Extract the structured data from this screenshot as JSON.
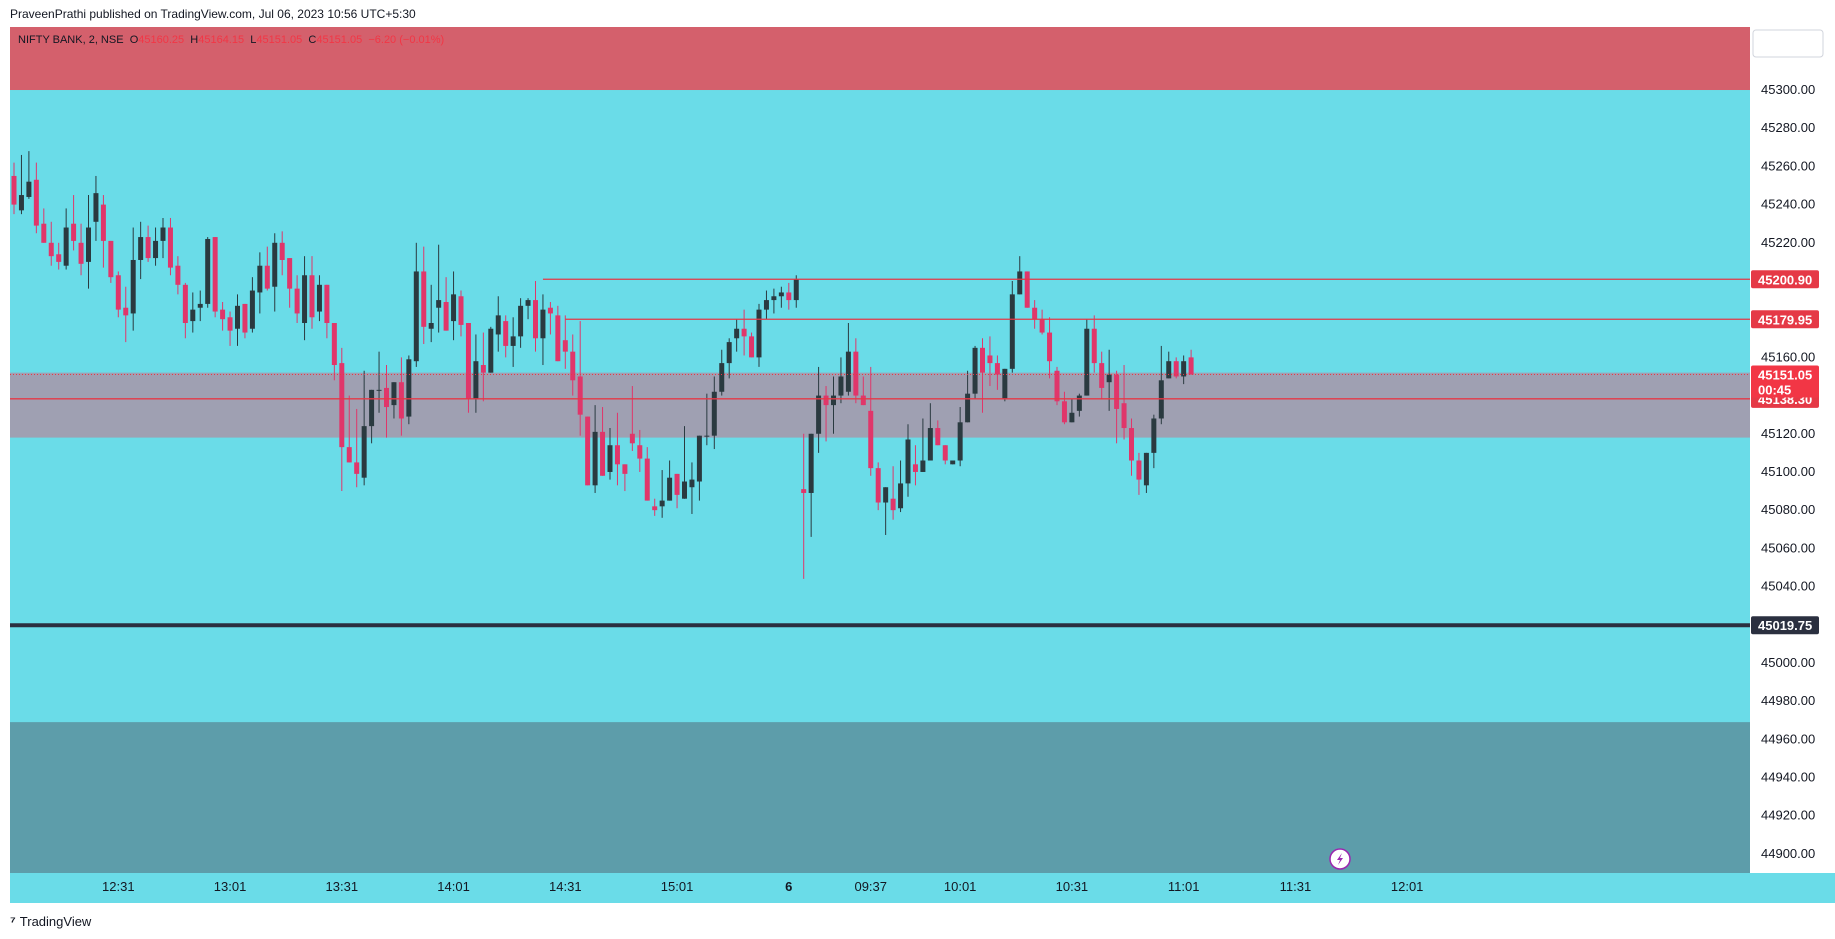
{
  "header": {
    "published_by": "PraveenPrathi published on TradingView.com, Jul 06, 2023 10:56 UTC+5:30"
  },
  "footer": {
    "brand": "TradingView"
  },
  "legend": {
    "symbol": "NIFTY BANK, 2, NSE",
    "o_label": "O",
    "o_value": "45160.25",
    "h_label": "H",
    "h_value": "45164.15",
    "l_label": "L",
    "l_value": "45151.05",
    "c_label": "C",
    "c_value": "45151.05",
    "change": "−6.20 (−0.01%)"
  },
  "colors": {
    "background": "#6adce8",
    "resistance_zone": "#d4606c",
    "demand_zone": "#5d9daa",
    "mid_zone": "#9fa0b2",
    "bull": "#2a3a40",
    "bear": "#e0366a",
    "line_red": "#e53946",
    "line_dark": "#2b3040"
  },
  "chart_data": {
    "type": "candlestick",
    "title": "NIFTY BANK, 2, NSE",
    "ylim": [
      44890,
      45333
    ],
    "y_ticks": [
      45300,
      45280,
      45260,
      45240,
      45220,
      45200,
      45180,
      45160,
      45140,
      45120,
      45100,
      45080,
      45060,
      45040,
      45020,
      45000,
      44980,
      44960,
      44940,
      44920,
      44900
    ],
    "y_tick_labels": [
      "45300.00",
      "45280.00",
      "45260.00",
      "45240.00",
      "45220.00",
      "45200.00",
      "45180.00",
      "45160.00",
      "45140.00",
      "45120.00",
      "45100.00",
      "45080.00",
      "45060.00",
      "45040.00",
      "45020.00",
      "45000.00",
      "44980.00",
      "44960.00",
      "44940.00",
      "44920.00",
      "44900.00"
    ],
    "x_labels": [
      {
        "label": "12:31",
        "bar": 14
      },
      {
        "label": "13:01",
        "bar": 29
      },
      {
        "label": "13:31",
        "bar": 44
      },
      {
        "label": "14:01",
        "bar": 59
      },
      {
        "label": "14:31",
        "bar": 74
      },
      {
        "label": "15:01",
        "bar": 89
      },
      {
        "label": "6",
        "bar": 104
      },
      {
        "label": "09:37",
        "bar": 115
      },
      {
        "label": "10:01",
        "bar": 127
      },
      {
        "label": "10:31",
        "bar": 142
      },
      {
        "label": "11:01",
        "bar": 157
      },
      {
        "label": "11:31",
        "bar": 172
      },
      {
        "label": "12:01",
        "bar": 187
      }
    ],
    "zones": [
      {
        "name": "resistance",
        "from": 45300,
        "to": 45333
      },
      {
        "name": "mid",
        "from": 45118,
        "to": 45152
      },
      {
        "name": "demand",
        "from": 44890,
        "to": 44969
      }
    ],
    "levels": [
      {
        "name": "level-45200",
        "value": 45200.9,
        "label": "45200.90",
        "from_bar": 71
      },
      {
        "name": "level-45179",
        "value": 45179.95,
        "label": "45179.95",
        "from_bar": 74
      },
      {
        "name": "level-45138",
        "value": 45138.3,
        "label": "45138.30",
        "from_bar": 0
      },
      {
        "name": "level-45019",
        "value": 45019.75,
        "label": "45019.75",
        "from_bar": 0
      }
    ],
    "last_price": {
      "value": 45151.05,
      "label": "45151.05",
      "countdown": "00:45"
    },
    "candles": [
      [
        45255,
        45262,
        45240,
        45235
      ],
      [
        45237,
        45266,
        45245,
        45235
      ],
      [
        45244,
        45268,
        45252,
        45243
      ],
      [
        45253,
        45262,
        45229,
        45225
      ],
      [
        45230,
        45238,
        45220,
        45221
      ],
      [
        45220,
        45231,
        45213,
        45208
      ],
      [
        45214,
        45220,
        45210,
        45206
      ],
      [
        45208,
        45238,
        45228,
        45206
      ],
      [
        45230,
        45245,
        45221,
        45216
      ],
      [
        45220,
        45230,
        45209,
        45203
      ],
      [
        45210,
        45245,
        45228,
        45196
      ],
      [
        45231,
        45255,
        45246,
        45221
      ],
      [
        45240,
        45245,
        45221,
        45207
      ],
      [
        45221,
        45219,
        45202,
        45199
      ],
      [
        45203,
        45205,
        45185,
        45181
      ],
      [
        45186,
        45197,
        45182,
        45168
      ],
      [
        45183,
        45228,
        45211,
        45174
      ],
      [
        45211,
        45231,
        45223,
        45201
      ],
      [
        45223,
        45229,
        45212,
        45210
      ],
      [
        45212,
        45228,
        45221,
        45208
      ],
      [
        45221,
        45233,
        45228,
        45212
      ],
      [
        45228,
        45233,
        45207,
        45203
      ],
      [
        45208,
        45213,
        45198,
        45193
      ],
      [
        45198,
        45199,
        45178,
        45170
      ],
      [
        45179,
        45194,
        45185,
        45173
      ],
      [
        45186,
        45195,
        45188,
        45179
      ],
      [
        45188,
        45223,
        45222,
        45186
      ],
      [
        45223,
        45223,
        45184,
        45181
      ],
      [
        45185,
        45189,
        45180,
        45174
      ],
      [
        45181,
        45184,
        45174,
        45166
      ],
      [
        45175,
        45193,
        45187,
        45166
      ],
      [
        45188,
        45188,
        45173,
        45170
      ],
      [
        45175,
        45202,
        45195,
        45173
      ],
      [
        45194,
        45215,
        45208,
        45183
      ],
      [
        45208,
        45218,
        45196,
        45195
      ],
      [
        45197,
        45225,
        45220,
        45184
      ],
      [
        45220,
        45226,
        45211,
        45203
      ],
      [
        45212,
        45201,
        45196,
        45186
      ],
      [
        45196,
        45203,
        45183,
        45178
      ],
      [
        45178,
        45213,
        45203,
        45169
      ],
      [
        45203,
        45213,
        45181,
        45175
      ],
      [
        45184,
        45203,
        45198,
        45179
      ],
      [
        45198,
        45198,
        45178,
        45170
      ],
      [
        45178,
        45177,
        45156,
        45148
      ],
      [
        45157,
        45165,
        45113,
        45090
      ],
      [
        45113,
        45140,
        45105,
        45108
      ],
      [
        45105,
        45133,
        45099,
        45092
      ],
      [
        45097,
        45153,
        45124,
        45093
      ],
      [
        45124,
        45143,
        45143,
        45115
      ],
      [
        45143,
        45163,
        45143,
        45131
      ],
      [
        45144,
        45156,
        45134,
        45118
      ],
      [
        45135,
        45147,
        45147,
        45128
      ],
      [
        45147,
        45160,
        45128,
        45119
      ],
      [
        45129,
        45161,
        45159,
        45125
      ],
      [
        45158,
        45220,
        45205,
        45155
      ],
      [
        45205,
        45218,
        45176,
        45167
      ],
      [
        45175,
        45198,
        45178,
        45168
      ],
      [
        45186,
        45219,
        45190,
        45173
      ],
      [
        45189,
        45202,
        45174,
        45174
      ],
      [
        45179,
        45205,
        45193,
        45169
      ],
      [
        45192,
        45195,
        45177,
        45171
      ],
      [
        45178,
        45162,
        45138,
        45131
      ],
      [
        45138,
        45172,
        45158,
        45131
      ],
      [
        45156,
        45173,
        45152,
        45137
      ],
      [
        45152,
        45176,
        45175,
        45156
      ],
      [
        45172,
        45192,
        45182,
        45163
      ],
      [
        45179,
        45182,
        45166,
        45160
      ],
      [
        45166,
        45181,
        45171,
        45155
      ],
      [
        45171,
        45191,
        45187,
        45165
      ],
      [
        45187,
        45191,
        45190,
        45180
      ],
      [
        45190,
        45200,
        45170,
        45163
      ],
      [
        45170,
        45193,
        45185,
        45156
      ],
      [
        45186,
        45189,
        45183,
        45172
      ],
      [
        45182,
        45187,
        45158,
        45159
      ],
      [
        45169,
        45182,
        45163,
        45154
      ],
      [
        45163,
        45172,
        45148,
        45140
      ],
      [
        45150,
        45179,
        45130,
        45119
      ],
      [
        45129,
        45128,
        45093,
        45093
      ],
      [
        45093,
        45135,
        45121,
        45089
      ],
      [
        45121,
        45134,
        45098,
        45100
      ],
      [
        45100,
        45123,
        45114,
        45096
      ],
      [
        45114,
        45131,
        45104,
        45093
      ],
      [
        45104,
        45104,
        45099,
        45090
      ],
      [
        45120,
        45145,
        45115,
        45111
      ],
      [
        45114,
        45122,
        45107,
        45100
      ],
      [
        45107,
        45113,
        45085,
        45086
      ],
      [
        45082,
        45086,
        45080,
        45077
      ],
      [
        45082,
        45101,
        45085,
        45076
      ],
      [
        45085,
        45106,
        45097,
        45085
      ],
      [
        45099,
        45091,
        45088,
        45081
      ],
      [
        45086,
        45124,
        45095,
        45092
      ],
      [
        45092,
        45105,
        45096,
        45078
      ],
      [
        45095,
        45119,
        45119,
        45085
      ],
      [
        45119,
        45141,
        45119,
        45114
      ],
      [
        45119,
        45150,
        45142,
        45112
      ],
      [
        45142,
        45164,
        45157,
        45140
      ],
      [
        45157,
        45170,
        45168,
        45149
      ],
      [
        45170,
        45180,
        45175,
        45163
      ],
      [
        45175,
        45185,
        45171,
        45161
      ],
      [
        45171,
        45173,
        45160,
        45165
      ],
      [
        45160,
        45188,
        45185,
        45155
      ],
      [
        45185,
        45195,
        45190,
        45180
      ],
      [
        45190,
        45196,
        45192,
        45183
      ],
      [
        45192,
        45197,
        45194,
        45186
      ],
      [
        45194,
        45199,
        45190,
        45185
      ],
      [
        45190,
        45203,
        45201,
        45186
      ],
      [
        45091,
        45120,
        45089,
        45044
      ],
      [
        45089,
        45120,
        45120,
        45066
      ],
      [
        45120,
        45155,
        45140,
        45110
      ],
      [
        45140,
        45145,
        45135,
        45116
      ],
      [
        45135,
        45150,
        45140,
        45120
      ],
      [
        45140,
        45160,
        45150,
        45136
      ],
      [
        45142,
        45178,
        45163,
        45140
      ],
      [
        45163,
        45170,
        45140,
        45136
      ],
      [
        45140,
        45150,
        45135,
        45138
      ],
      [
        45132,
        45155,
        45102,
        45098
      ],
      [
        45102,
        45105,
        45084,
        45080
      ],
      [
        45084,
        45092,
        45092,
        45067
      ],
      [
        45086,
        45103,
        45080,
        45075
      ],
      [
        45081,
        45106,
        45094,
        45079
      ],
      [
        45094,
        45125,
        45117,
        45087
      ],
      [
        45104,
        45114,
        45100,
        45093
      ],
      [
        45100,
        45128,
        45106,
        45105
      ],
      [
        45106,
        45136,
        45123,
        45112
      ],
      [
        45123,
        45127,
        45114,
        45114
      ],
      [
        45114,
        45113,
        45106,
        45104
      ],
      [
        45104,
        45106,
        45106,
        45104
      ],
      [
        45106,
        45134,
        45126,
        45103
      ],
      [
        45126,
        45153,
        45141,
        45126
      ],
      [
        45141,
        45166,
        45165,
        45138
      ],
      [
        45165,
        45170,
        45152,
        45131
      ],
      [
        45161,
        45171,
        45157,
        45145
      ],
      [
        45157,
        45161,
        45151,
        45143
      ],
      [
        45138,
        45145,
        45154,
        45137
      ],
      [
        45154,
        45200,
        45193,
        45152
      ],
      [
        45193,
        45213,
        45205,
        45193
      ],
      [
        45205,
        45203,
        45186,
        45187
      ],
      [
        45186,
        45190,
        45180,
        45175
      ],
      [
        45180,
        45185,
        45173,
        45172
      ],
      [
        45173,
        45181,
        45158,
        45149
      ],
      [
        45153,
        45155,
        45137,
        45135
      ],
      [
        45137,
        45142,
        45126,
        45125
      ],
      [
        45126,
        45138,
        45131,
        45126
      ],
      [
        45132,
        45141,
        45140,
        45129
      ],
      [
        45140,
        45180,
        45175,
        45140
      ],
      [
        45175,
        45182,
        45157,
        45152
      ],
      [
        45157,
        45163,
        45144,
        45138
      ],
      [
        45147,
        45164,
        45151,
        45132
      ],
      [
        45151,
        45153,
        45133,
        45115
      ],
      [
        45136,
        45156,
        45123,
        45117
      ],
      [
        45123,
        45128,
        45106,
        45098
      ],
      [
        45106,
        45110,
        45096,
        45088
      ],
      [
        45093,
        45100,
        45110,
        45089
      ],
      [
        45110,
        45130,
        45128,
        45102
      ],
      [
        45128,
        45166,
        45148,
        45125
      ],
      [
        45149,
        45163,
        45158,
        45149
      ],
      [
        45158,
        45160,
        45150,
        45149
      ],
      [
        45150,
        45161,
        45158,
        45146
      ],
      [
        45160,
        45164,
        45151,
        45151
      ]
    ]
  }
}
